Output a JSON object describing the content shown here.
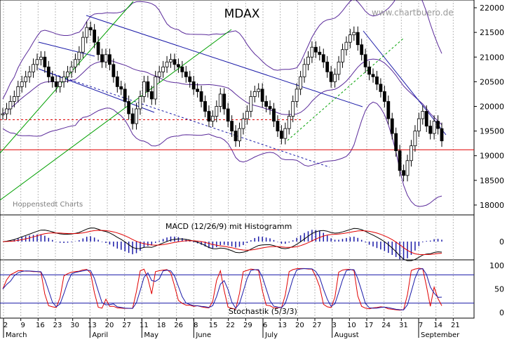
{
  "chart_data": [
    {
      "panel": "price",
      "type": "candlestick",
      "title": "MDAX",
      "watermark": "www.chartbuero.de",
      "source_note": "Hoppenstedt Charts",
      "y_ticks": [
        22000,
        21500,
        21000,
        20500,
        20000,
        19500,
        19000,
        18500,
        18000
      ],
      "ylim": [
        17800,
        22100
      ],
      "grid": true,
      "support_line": 19120,
      "support_dashed": 19730,
      "closes": [
        19850,
        19950,
        20100,
        20200,
        20400,
        20500,
        20600,
        20700,
        20850,
        20950,
        21000,
        20800,
        20600,
        20500,
        20400,
        20500,
        20600,
        20700,
        20800,
        20950,
        21100,
        21400,
        21600,
        21550,
        21300,
        21050,
        20900,
        21050,
        20850,
        20600,
        20400,
        20350,
        20100,
        19850,
        19650,
        19950,
        20200,
        20500,
        20300,
        20150,
        20600,
        20700,
        20800,
        20900,
        20950,
        20850,
        20800,
        20700,
        20600,
        20500,
        20350,
        20300,
        20100,
        19900,
        19700,
        19800,
        20000,
        20250,
        19950,
        19700,
        19500,
        19300,
        19550,
        19750,
        19900,
        20200,
        20300,
        20350,
        20100,
        20000,
        19950,
        19700,
        19500,
        19350,
        19550,
        19800,
        20100,
        20350,
        20600,
        20850,
        21000,
        21200,
        21100,
        21050,
        20900,
        20700,
        20500,
        20650,
        20900,
        21150,
        21300,
        21450,
        21500,
        21250,
        21050,
        20800,
        20650,
        20600,
        20450,
        20300,
        20100,
        19750,
        19450,
        19100,
        18700,
        18600,
        18900,
        19200,
        19500,
        19750,
        19900,
        19600,
        19450,
        19700,
        19550,
        19300
      ],
      "ohlc_sample_date_labels": [
        "2",
        "9",
        "16",
        "23",
        "30",
        "6",
        "13",
        "20",
        "27",
        "4",
        "11",
        "18",
        "25",
        "1",
        "8",
        "15",
        "22",
        "29",
        "6",
        "13",
        "20",
        "27",
        "3",
        "10",
        "17",
        "24",
        "31",
        "7",
        "14",
        "21"
      ],
      "x_date_labels": [
        "2",
        "9",
        "16",
        "23",
        "30",
        "13",
        "20",
        "27",
        "11",
        "18",
        "26",
        "8",
        "15",
        "22",
        "29",
        "6",
        "13",
        "20",
        "27",
        "3",
        "10",
        "17",
        "24",
        "31",
        "7",
        "14",
        "21"
      ],
      "months": [
        "March",
        "April",
        "May",
        "June",
        "July",
        "August",
        "September"
      ]
    },
    {
      "panel": "macd",
      "type": "line",
      "title": "MACD (12/26/9) mit Histogramm",
      "y_ticks": [
        0
      ]
    },
    {
      "panel": "stochastic",
      "type": "line",
      "title": "Stochastik (5/3/3)",
      "y_ticks": [
        100,
        50,
        0
      ],
      "levels": [
        80,
        20
      ]
    }
  ]
}
